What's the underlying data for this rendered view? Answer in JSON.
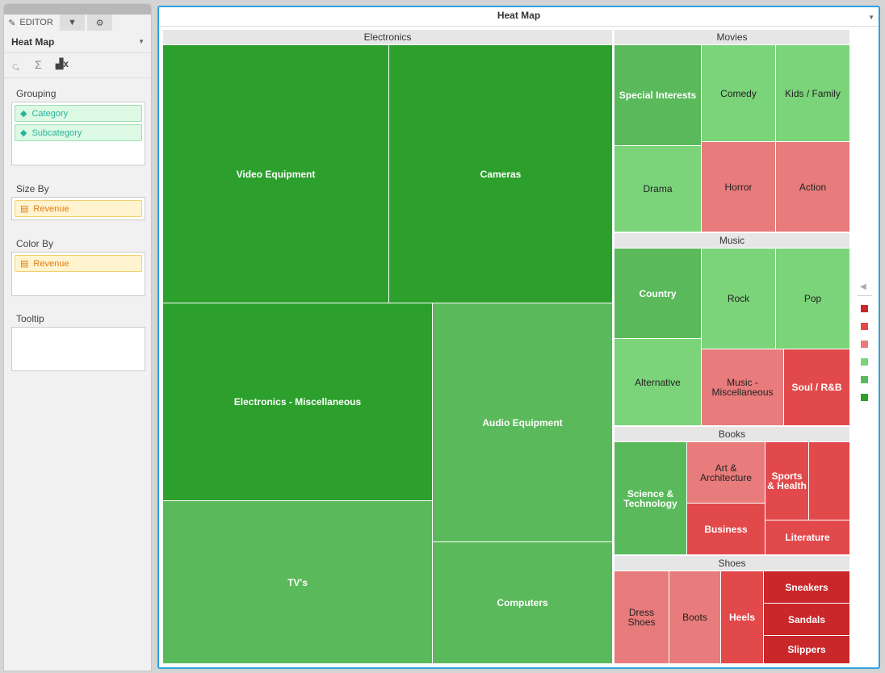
{
  "sidebar": {
    "tabs": {
      "editor": "EDITOR",
      "filter_icon": "filter-icon",
      "settings_icon": "gear-icon"
    },
    "chart_type": "Heat Map",
    "grouping": {
      "label": "Grouping",
      "items": [
        "Category",
        "Subcategory"
      ]
    },
    "size_by": {
      "label": "Size By",
      "value": "Revenue"
    },
    "color_by": {
      "label": "Color By",
      "value": "Revenue"
    },
    "tooltip": {
      "label": "Tooltip"
    }
  },
  "title": "Heat Map",
  "colors": {
    "dark_green": "#2c9f2d",
    "mid_green": "#5ab95a",
    "light_green": "#7bd47a",
    "light_red": "#e87b7b",
    "red": "#e2494b",
    "dark_red": "#c9272a"
  },
  "legend": [
    "dark_red",
    "red",
    "light_red",
    "light_green",
    "mid_green",
    "dark_green"
  ],
  "groups": [
    {
      "name": "Electronics",
      "tiles": [
        {
          "label": "Video Equipment",
          "color": "dark_green"
        },
        {
          "label": "Cameras",
          "color": "dark_green"
        },
        {
          "label": "Electronics - Miscellaneous",
          "color": "dark_green"
        },
        {
          "label": "TV's",
          "color": "mid_green"
        },
        {
          "label": "Audio Equipment",
          "color": "mid_green"
        },
        {
          "label": "Computers",
          "color": "mid_green"
        }
      ]
    },
    {
      "name": "Movies",
      "tiles": [
        {
          "label": "Special Interests",
          "color": "mid_green"
        },
        {
          "label": "Comedy",
          "color": "light_green"
        },
        {
          "label": "Kids / Family",
          "color": "light_green"
        },
        {
          "label": "Drama",
          "color": "light_green"
        },
        {
          "label": "Horror",
          "color": "light_red"
        },
        {
          "label": "Action",
          "color": "light_red"
        }
      ]
    },
    {
      "name": "Music",
      "tiles": [
        {
          "label": "Country",
          "color": "mid_green"
        },
        {
          "label": "Rock",
          "color": "light_green"
        },
        {
          "label": "Pop",
          "color": "light_green"
        },
        {
          "label": "Alternative",
          "color": "light_green"
        },
        {
          "label": "Music - Miscellaneous",
          "color": "light_red"
        },
        {
          "label": "Soul / R&B",
          "color": "red"
        }
      ]
    },
    {
      "name": "Books",
      "tiles": [
        {
          "label": "Science & Technology",
          "color": "mid_green"
        },
        {
          "label": "Art & Architecture",
          "color": "light_red"
        },
        {
          "label": "Business",
          "color": "red"
        },
        {
          "label": "Sports & Health",
          "color": "red"
        },
        {
          "label": "",
          "color": "red"
        },
        {
          "label": "Literature",
          "color": "red"
        }
      ]
    },
    {
      "name": "Shoes",
      "tiles": [
        {
          "label": "Dress Shoes",
          "color": "light_red"
        },
        {
          "label": "Boots",
          "color": "light_red"
        },
        {
          "label": "Heels",
          "color": "red"
        },
        {
          "label": "Sneakers",
          "color": "dark_red"
        },
        {
          "label": "Sandals",
          "color": "dark_red"
        },
        {
          "label": "Slippers",
          "color": "dark_red"
        }
      ]
    }
  ]
}
